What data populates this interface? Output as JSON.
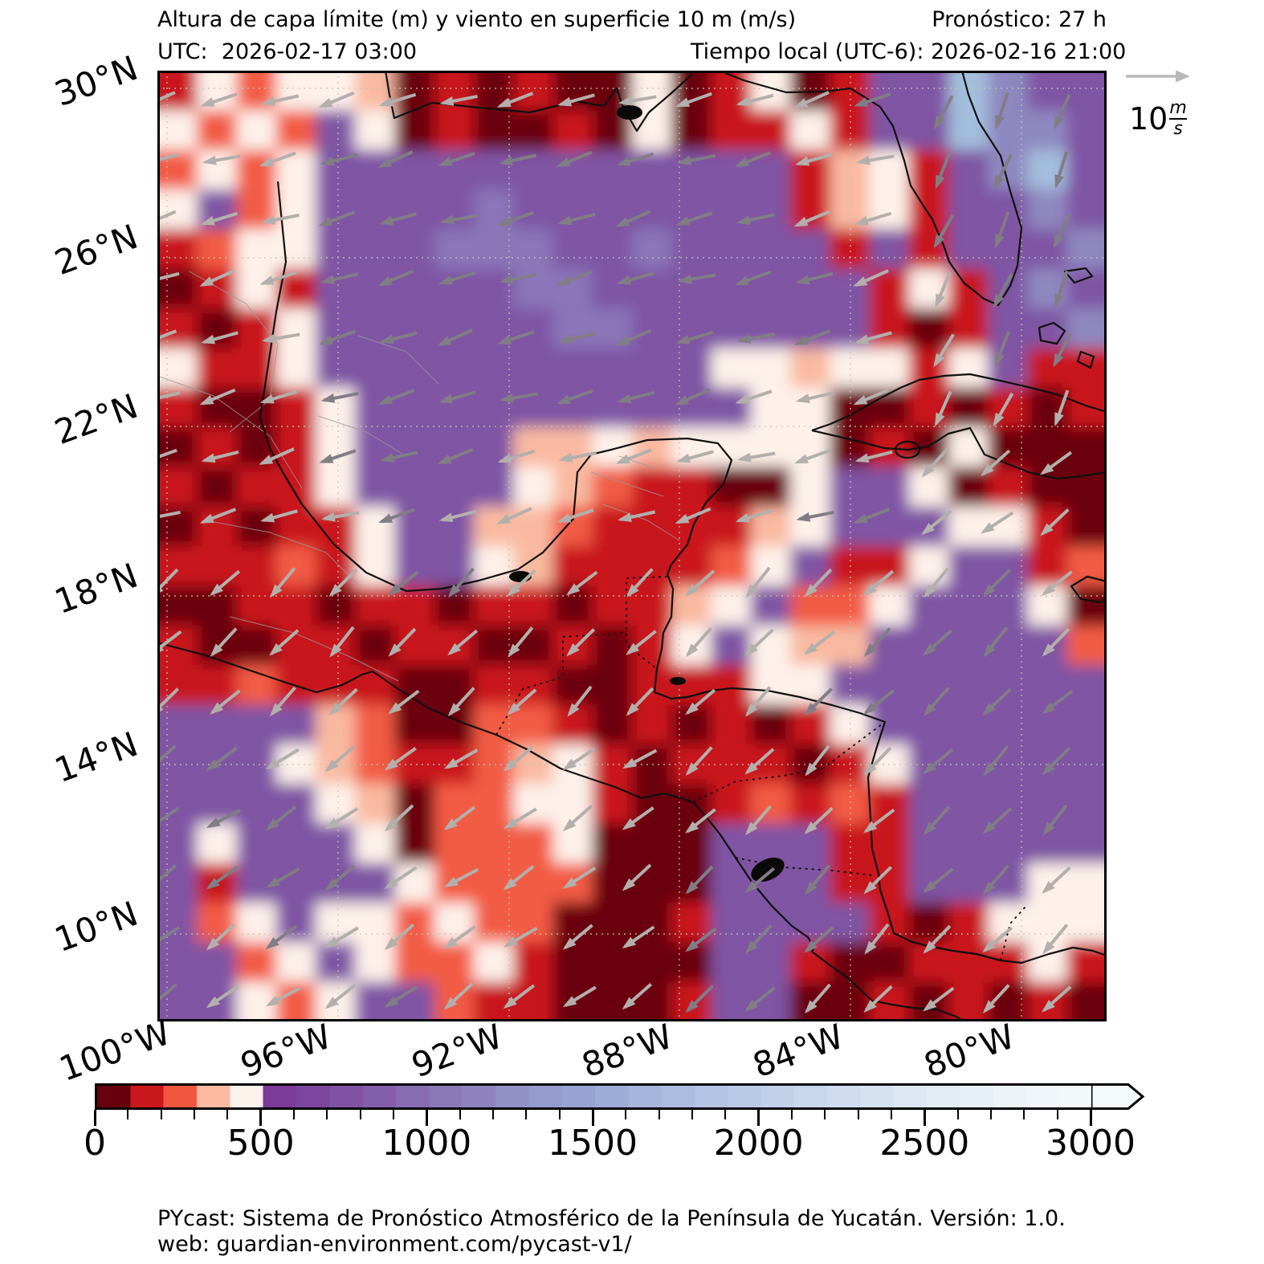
{
  "header": {
    "title": "Altura de capa límite (m) y viento en superficie 10 m (m/s)",
    "forecast": "Pronóstico: 27 h",
    "utc_time": "UTC:  2026-02-17 03:00",
    "local_time": "Tiempo local (UTC-6): 2026-02-16 21:00"
  },
  "wind_legend": {
    "value": "10",
    "unit_num": "m",
    "unit_den": "s"
  },
  "map": {
    "lat_ticks": [
      "30°N",
      "26°N",
      "22°N",
      "18°N",
      "14°N",
      "10°N"
    ],
    "lon_ticks": [
      "100°W",
      "96°W",
      "92°W",
      "88°W",
      "84°W",
      "80°W"
    ],
    "palette": {
      "0": "#6b0010",
      "1": "#c9161d",
      "2": "#f25c44",
      "3": "#f9b9a0",
      "4": "#fdf1ea",
      "5": "#7b3b97",
      "6": "#7f55a4",
      "7": "#8a76b8",
      "8": "#8e88c0",
      "9": "#a3bedc",
      "a": "#ccdfee",
      "b": "#edf4fa"
    },
    "grid_rows": [
      "142443010100401401669866",
      "424264010010401141669886",
      "242466666666666613416896",
      "462466667666666613416686",
      "124466677766766661616668",
      "014166666776666666141686",
      "101466666677666666101668",
      "411466666666664434414611",
      "100146666666666440010101",
      "010146666334344440104000",
      "101146666432110046640100",
      "010114663321111346664410",
      "111214664311112461146612",
      "001101101101134622466640",
      "100110110010146433666662",
      "112111001100111446666666",
      "666632002210101014666666",
      "666432112341011101466666",
      "666643022441001212166666",
      "646664022240006661166666",
      "616666422220006661166644",
      "624644242200016666101444",
      "662464224100006610011141",
      "664246621100016600101010"
    ]
  },
  "colorbar": {
    "tick_labels": [
      "0",
      "500",
      "1000",
      "1500",
      "2000",
      "2500",
      "3000"
    ],
    "value_min": 0,
    "value_max": 3000,
    "segment_colors": [
      "#67000d",
      "#cb181d",
      "#f1573f",
      "#fcbba1",
      "#fdf2ec",
      "#7b3b97",
      "#7d469e",
      "#8053a4",
      "#835fa9",
      "#876cb1",
      "#8b78b8",
      "#8e83bf",
      "#9190c7",
      "#949bce",
      "#97a3d2",
      "#9dabd7",
      "#a4b4db",
      "#abbce0",
      "#b2c3e3",
      "#b9cae6",
      "#c0d1e9",
      "#c7d7ec",
      "#cedcee",
      "#d5e2f1",
      "#dce7f3",
      "#e2ecf5",
      "#e7f0f7",
      "#ecf3f9",
      "#f0f6fa",
      "#f3f8fb"
    ]
  },
  "footer": {
    "line1": "PYcast: Sistema de Pronóstico Atmosférico de la Península de Yucatán. Versión: 1.0.",
    "line2": "web: guardian-environment.com/pycast-v1/"
  }
}
